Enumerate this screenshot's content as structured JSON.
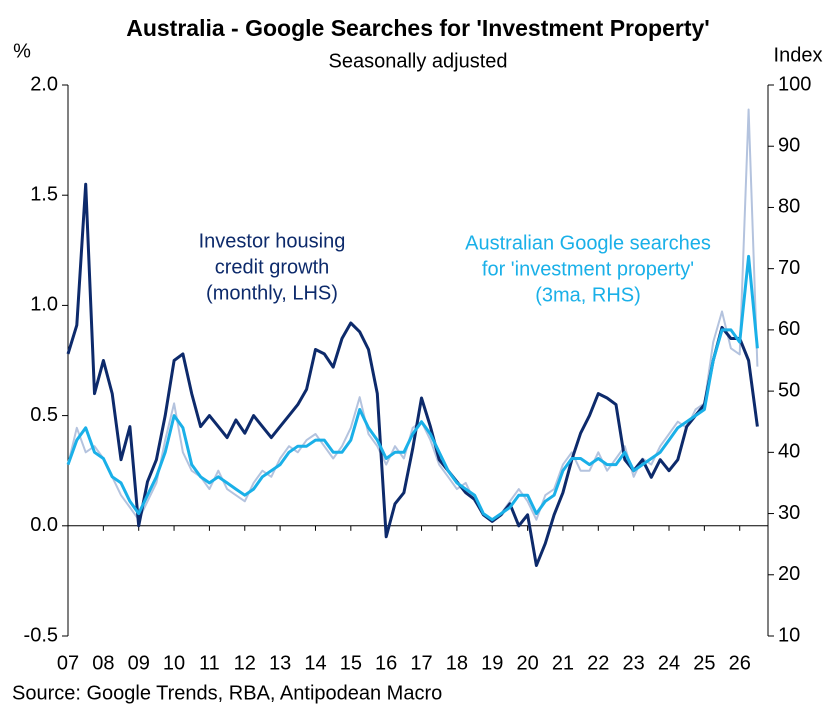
{
  "chart_data": {
    "type": "line",
    "title": "Australia - Google Searches for 'Investment Property'",
    "subtitle": "Seasonally adjusted",
    "y_label": "%",
    "y2_label": "Index",
    "source": "Source: Google Trends, RBA, Antipodean Macro",
    "annotations": [
      {
        "lines": [
          "Investor housing",
          "credit growth",
          "(monthly, LHS)"
        ],
        "color": "#0d2a6b"
      },
      {
        "lines": [
          "Australian Google searches",
          "for 'investment property'",
          "(3ma, RHS)"
        ],
        "color": "#1ab0e8"
      }
    ],
    "x": [
      7,
      7.25,
      7.5,
      7.75,
      8,
      8.25,
      8.5,
      8.75,
      9,
      9.25,
      9.5,
      9.75,
      10,
      10.25,
      10.5,
      10.75,
      11,
      11.25,
      11.5,
      11.75,
      12,
      12.25,
      12.5,
      12.75,
      13,
      13.25,
      13.5,
      13.75,
      14,
      14.25,
      14.5,
      14.75,
      15,
      15.25,
      15.5,
      15.75,
      16,
      16.25,
      16.5,
      16.75,
      17,
      17.25,
      17.5,
      17.75,
      18,
      18.25,
      18.5,
      18.75,
      19,
      19.25,
      19.5,
      19.75,
      20,
      20.25,
      20.5,
      20.75,
      21,
      21.25,
      21.5,
      21.75,
      22,
      22.25,
      22.5,
      22.75,
      23,
      23.25,
      23.5,
      23.75,
      24,
      24.25,
      24.5,
      24.75,
      25,
      25.25,
      25.5,
      25.75,
      26,
      26.25,
      26.5
    ],
    "series": [
      {
        "color": "#b4c3de",
        "axis": "y2",
        "width": 2,
        "values": [
          38,
          44,
          40,
          41,
          39,
          36,
          33,
          31,
          29,
          32,
          35,
          42,
          48,
          40,
          37,
          36,
          34,
          37,
          34,
          33,
          32,
          35,
          37,
          36,
          39,
          41,
          40,
          42,
          43,
          41,
          39,
          41,
          44,
          49,
          43,
          41,
          38,
          41,
          39,
          44,
          45,
          42,
          38,
          36,
          34,
          35,
          32,
          30,
          29,
          30,
          32,
          34,
          32,
          29,
          33,
          34,
          38,
          40,
          37,
          37,
          40,
          37,
          39,
          41,
          36,
          39,
          38,
          41,
          43,
          45,
          44,
          47,
          48,
          58,
          63,
          57,
          56,
          96,
          54
        ]
      },
      {
        "color": "#0d2a6b",
        "width": 3,
        "values": [
          0.78,
          0.91,
          1.55,
          0.6,
          0.75,
          0.6,
          0.3,
          0.45,
          0.0,
          0.2,
          0.3,
          0.5,
          0.75,
          0.78,
          0.6,
          0.45,
          0.5,
          0.45,
          0.4,
          0.48,
          0.42,
          0.5,
          0.45,
          0.4,
          0.45,
          0.5,
          0.55,
          0.62,
          0.8,
          0.78,
          0.72,
          0.85,
          0.92,
          0.88,
          0.8,
          0.6,
          -0.05,
          0.1,
          0.15,
          0.35,
          0.58,
          0.45,
          0.3,
          0.25,
          0.2,
          0.15,
          0.12,
          0.05,
          0.02,
          0.05,
          0.1,
          0.0,
          0.05,
          -0.18,
          -0.08,
          0.05,
          0.15,
          0.3,
          0.42,
          0.5,
          0.6,
          0.58,
          0.55,
          0.3,
          0.25,
          0.3,
          0.22,
          0.3,
          0.25,
          0.3,
          0.45,
          0.5,
          0.55,
          0.75,
          0.9,
          0.85,
          0.85,
          0.75,
          0.45
        ]
      },
      {
        "color": "#1ab0e8",
        "axis": "y2",
        "width": 3,
        "values": [
          38,
          42,
          44,
          40,
          39,
          36,
          35,
          32,
          30,
          33,
          36,
          40,
          46,
          44,
          38,
          36,
          35,
          36,
          35,
          34,
          33,
          34,
          36,
          37,
          38,
          40,
          41,
          41,
          42,
          42,
          40,
          40,
          42,
          47,
          44,
          42,
          39,
          40,
          40,
          43,
          45,
          43,
          40,
          37,
          35,
          34,
          33,
          30,
          29,
          30,
          31,
          33,
          33,
          30,
          32,
          33,
          37,
          39,
          39,
          38,
          39,
          38,
          38,
          40,
          37,
          38,
          39,
          40,
          42,
          44,
          45,
          46,
          47,
          55,
          60,
          60,
          58,
          72,
          57
        ]
      }
    ],
    "xlim": [
      7,
      26.8
    ],
    "xticks": [
      {
        "value": 7,
        "label": "07"
      },
      {
        "value": 8,
        "label": "08"
      },
      {
        "value": 9,
        "label": "09"
      },
      10,
      11,
      12,
      13,
      14,
      15,
      16,
      17,
      18,
      19,
      20,
      21,
      22,
      23,
      24,
      25,
      26
    ],
    "ylim": [
      -0.5,
      2.0
    ],
    "yticks": [
      -0.5,
      {
        "value": 0,
        "label": "0.0"
      },
      0.5,
      {
        "value": 1,
        "label": "1.0"
      },
      1.5,
      {
        "value": 2,
        "label": "2.0"
      }
    ],
    "y2lim": [
      10,
      100
    ],
    "y2ticks": [
      10,
      20,
      30,
      40,
      50,
      60,
      70,
      80,
      90,
      100
    ],
    "grid": false
  }
}
